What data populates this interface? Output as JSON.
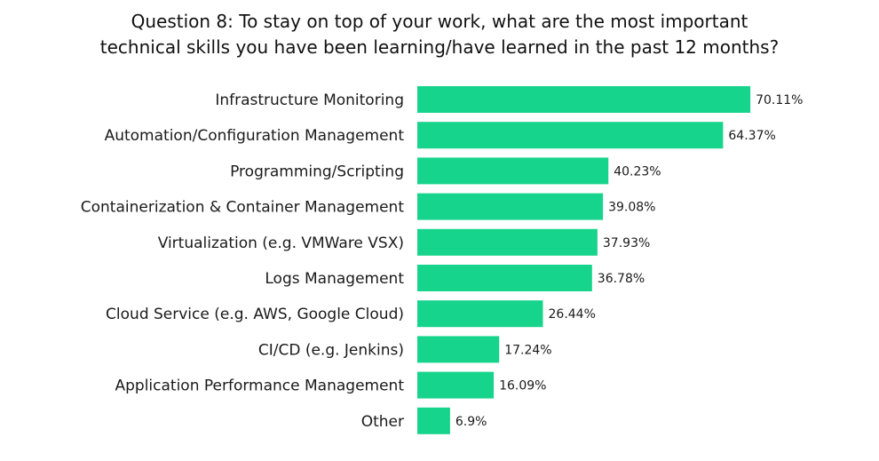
{
  "chart_data": {
    "type": "bar",
    "orientation": "horizontal",
    "title_lines": [
      "Question 8: To stay on top of your work, what are the most important",
      "technical skills you have been learning/have learned in the past 12 months?"
    ],
    "categories": [
      "Infrastructure Monitoring",
      "Automation/Configuration Management",
      "Programming/Scripting",
      "Containerization & Container Management",
      "Virtualization (e.g. VMWare VSX)",
      "Logs Management",
      "Cloud Service (e.g. AWS, Google Cloud)",
      "CI/CD (e.g. Jenkins)",
      "Application Performance Management",
      "Other"
    ],
    "values": [
      70.11,
      64.37,
      40.23,
      39.08,
      37.93,
      36.78,
      26.44,
      17.24,
      16.09,
      6.9
    ],
    "value_labels": [
      "70.11%",
      "64.37%",
      "40.23%",
      "39.08%",
      "37.93%",
      "36.78%",
      "26.44%",
      "17.24%",
      "16.09%",
      "6.9%"
    ],
    "xlim": [
      0,
      100
    ],
    "grid": false,
    "legend": "none",
    "bar_color": "#17d48c"
  }
}
